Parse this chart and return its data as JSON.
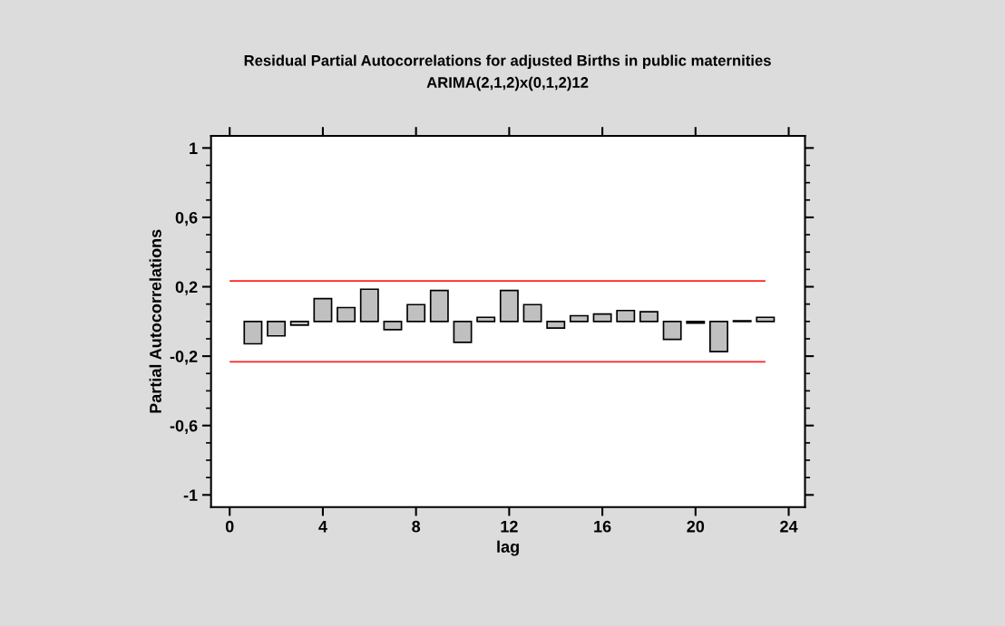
{
  "chart_data": {
    "type": "bar",
    "title": "Residual Partial Autocorrelations for adjusted Births in public maternities",
    "subtitle": "ARIMA(2,1,2)x(0,1,2)12",
    "xlabel": "lag",
    "ylabel": "Partial Autocorrelations",
    "x": [
      1,
      2,
      3,
      4,
      5,
      6,
      7,
      8,
      9,
      10,
      11,
      12,
      13,
      14,
      15,
      16,
      17,
      18,
      19,
      20,
      21,
      22,
      23
    ],
    "values": [
      -0.129,
      -0.083,
      -0.021,
      0.132,
      0.08,
      0.186,
      -0.047,
      0.097,
      0.179,
      -0.12,
      0.024,
      0.179,
      0.097,
      -0.038,
      0.033,
      0.043,
      0.063,
      0.056,
      -0.103,
      -0.009,
      -0.174,
      0.004,
      0.024
    ],
    "color": "#c0c0c0",
    "xlim": [
      -0.8,
      24.7
    ],
    "xticks": [
      0,
      4,
      8,
      12,
      16,
      20,
      24
    ],
    "ylim": [
      -1.07,
      1.07
    ],
    "yticks": [
      {
        "value": -1,
        "label": "-1"
      },
      {
        "value": -0.6,
        "label": "-0,6"
      },
      {
        "value": -0.2,
        "label": "-0,2"
      },
      {
        "value": 0.2,
        "label": "0,2"
      },
      {
        "value": 0.6,
        "label": "0,6"
      },
      {
        "value": 1,
        "label": "1"
      }
    ],
    "ref_lines": [
      {
        "axis": "y",
        "value": 0.233,
        "label": null,
        "color": "#ff2020"
      },
      {
        "axis": "y",
        "value": -0.233,
        "label": null,
        "color": "#ff2020"
      }
    ],
    "grid": false,
    "legend": false
  }
}
